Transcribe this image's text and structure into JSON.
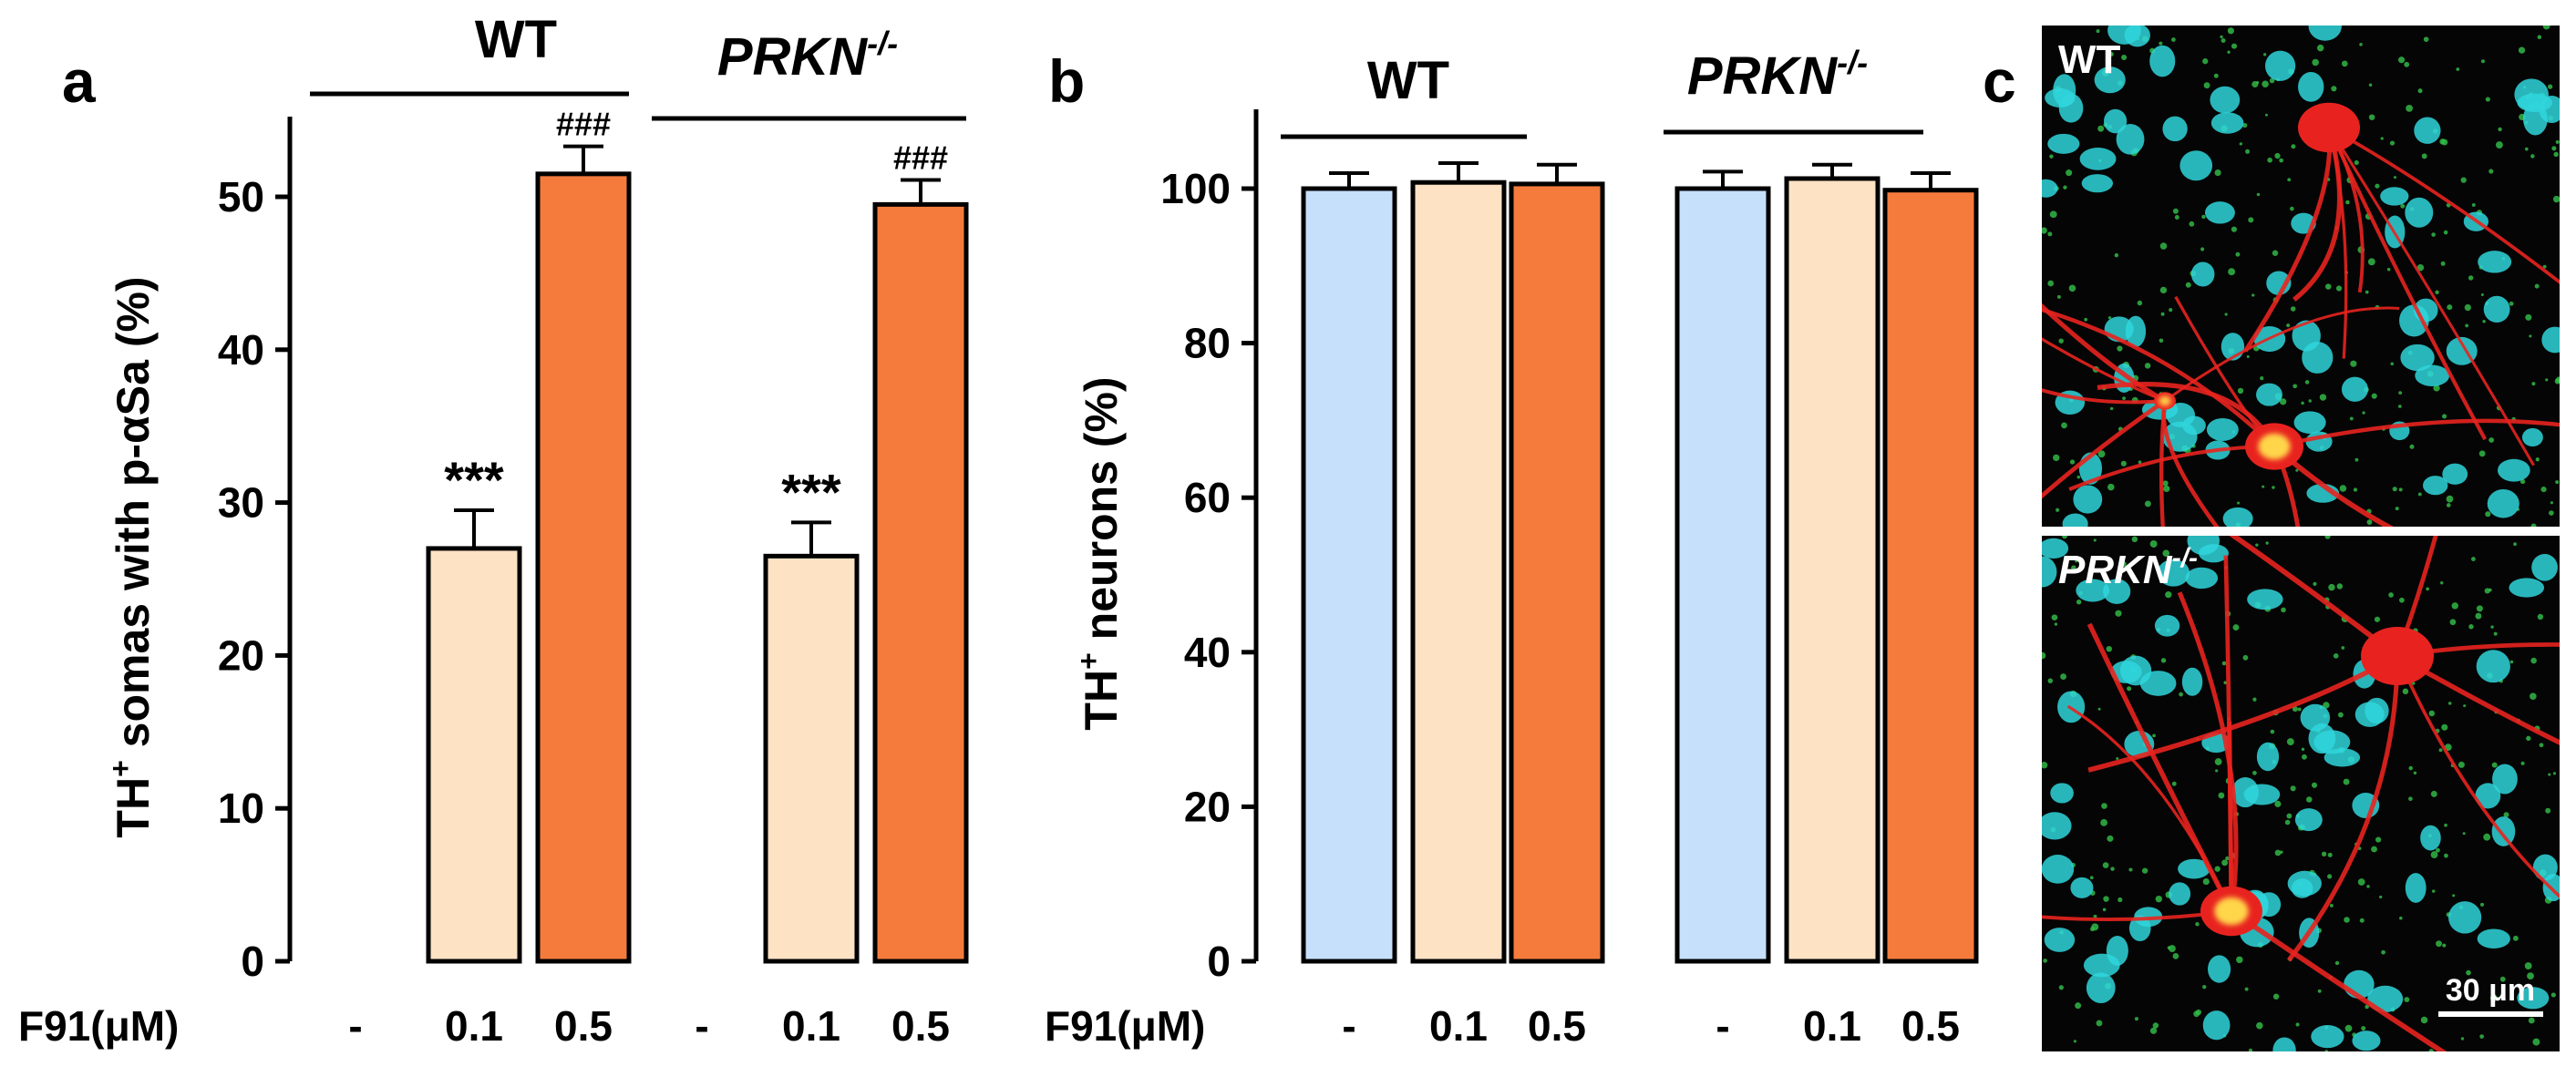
{
  "colors": {
    "control": "#c6e0fb",
    "low_dose": "#fde2c4",
    "high_dose": "#f47b3c",
    "axis": "#000000",
    "micro_bg": "#050505",
    "nuclei": "#2fd6dc",
    "neurite": "#e8231f",
    "soma_core": "#ffd54a",
    "puncta": "#33c24a"
  },
  "panels": {
    "a": "a",
    "b": "b",
    "c": "c"
  },
  "treatment_label": "F91(μM)",
  "chart_data": [
    {
      "id": "a",
      "type": "bar",
      "ylabel_pre": "TH",
      "ylabel_sup": "+",
      "ylabel_post": " somas with p-αSa (%)",
      "ylim": [
        0,
        55
      ],
      "yticks": [
        "0",
        "10",
        "20",
        "30",
        "40",
        "50"
      ],
      "categories": [
        "-",
        "0.1",
        "0.5",
        "-",
        "0.1",
        "0.5"
      ],
      "groups": [
        {
          "name": "WT",
          "superscript": ""
        },
        {
          "name": "PRKN",
          "superscript": "-/-"
        }
      ],
      "values": [
        null,
        27.0,
        51.5,
        null,
        26.5,
        49.5
      ],
      "errors": [
        null,
        2.5,
        1.8,
        null,
        2.2,
        1.6
      ],
      "annotations": [
        "",
        "***",
        "###",
        "",
        "***",
        "###"
      ]
    },
    {
      "id": "b",
      "type": "bar",
      "ylabel_pre": "TH",
      "ylabel_sup": "+",
      "ylabel_post": " neurons (%)",
      "ylim": [
        0,
        110
      ],
      "yticks": [
        "0",
        "20",
        "40",
        "60",
        "80",
        "100"
      ],
      "categories": [
        "-",
        "0.1",
        "0.5",
        "-",
        "0.1",
        "0.5"
      ],
      "groups": [
        {
          "name": "WT",
          "superscript": ""
        },
        {
          "name": "PRKN",
          "superscript": "-/-"
        }
      ],
      "values": [
        100.0,
        100.8,
        100.6,
        100.0,
        101.3,
        99.8
      ],
      "errors": [
        2.0,
        2.5,
        2.5,
        2.2,
        1.8,
        2.2
      ],
      "annotations": [
        "",
        "",
        "",
        "",
        "",
        ""
      ]
    }
  ],
  "micrographs": [
    {
      "label": "WT",
      "superscript": ""
    },
    {
      "label": "PRKN",
      "superscript": "-/-"
    }
  ],
  "scale_bar": "30 μm"
}
